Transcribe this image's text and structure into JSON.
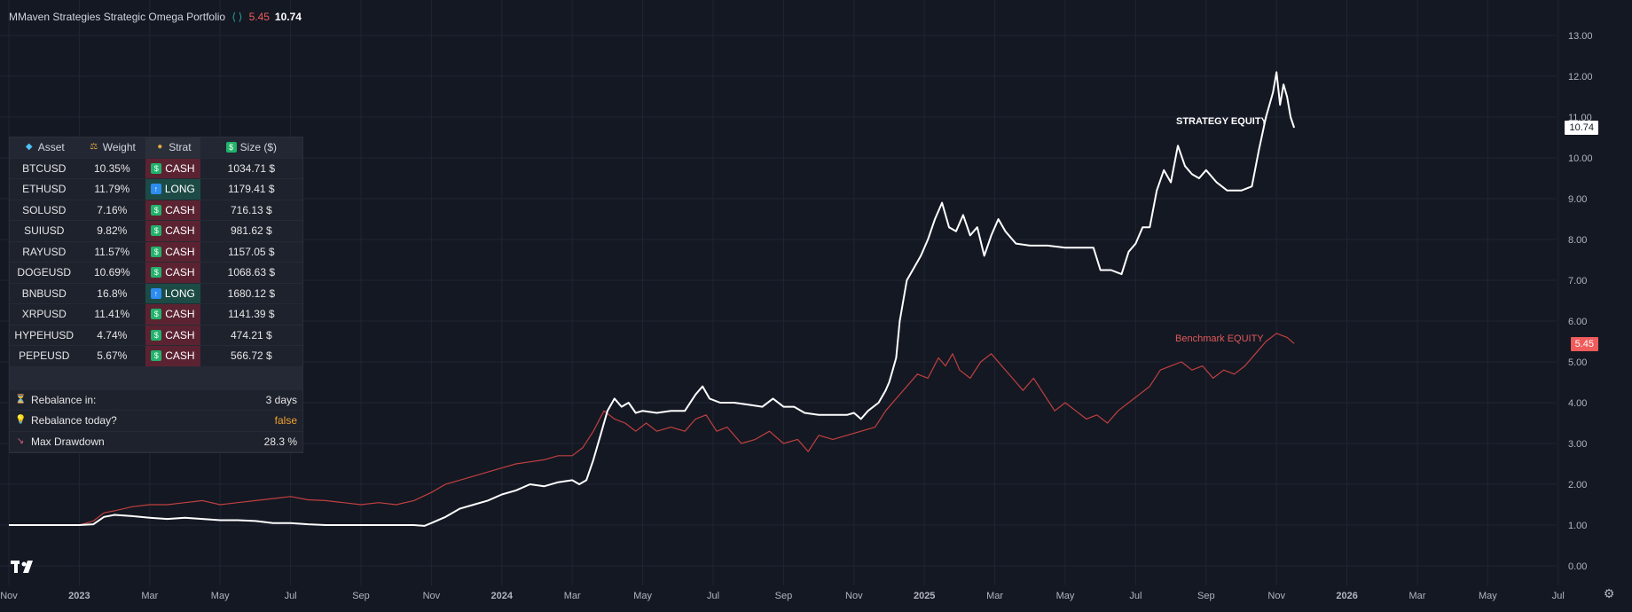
{
  "legend": {
    "title": "MMaven Strategies Strategic Omega Portfolio",
    "brackets": "⟨⟩",
    "benchmark_value": "5.45",
    "strategy_value": "10.74"
  },
  "colors": {
    "background": "#141823",
    "grid": "#202533",
    "strategy_line": "#ffffff",
    "benchmark_line": "#c0403f",
    "cash_cell": "#5b2331",
    "long_cell": "#1c4b46",
    "false_text": "#f0a030"
  },
  "labels": {
    "strategy": "STRATEGY EQUITY",
    "benchmark": "Benchmark EQUITY"
  },
  "price_tags": {
    "strategy": "10.74",
    "benchmark": "5.45"
  },
  "table": {
    "headers": {
      "asset": "Asset",
      "weight": "Weight",
      "strat": "Strat",
      "size": "Size ($)"
    },
    "header_icons": {
      "asset": "gem-icon",
      "weight": "scale-icon",
      "strat": "coin-icon",
      "size": "money-icon"
    },
    "rows": [
      {
        "asset": "BTCUSD",
        "weight": "10.35%",
        "strat": "CASH",
        "size": "1034.71 $"
      },
      {
        "asset": "ETHUSD",
        "weight": "11.79%",
        "strat": "LONG",
        "size": "1179.41 $"
      },
      {
        "asset": "SOLUSD",
        "weight": "7.16%",
        "strat": "CASH",
        "size": "716.13 $"
      },
      {
        "asset": "SUIUSD",
        "weight": "9.82%",
        "strat": "CASH",
        "size": "981.62 $"
      },
      {
        "asset": "RAYUSD",
        "weight": "11.57%",
        "strat": "CASH",
        "size": "1157.05 $"
      },
      {
        "asset": "DOGEUSD",
        "weight": "10.69%",
        "strat": "CASH",
        "size": "1068.63 $"
      },
      {
        "asset": "BNBUSD",
        "weight": "16.8%",
        "strat": "LONG",
        "size": "1680.12 $"
      },
      {
        "asset": "XRPUSD",
        "weight": "11.41%",
        "strat": "CASH",
        "size": "1141.39 $"
      },
      {
        "asset": "HYPEHUSD",
        "weight": "4.74%",
        "strat": "CASH",
        "size": "474.21 $"
      },
      {
        "asset": "PEPEUSD",
        "weight": "5.67%",
        "strat": "CASH",
        "size": "566.72 $"
      }
    ],
    "info": [
      {
        "icon": "hourglass-icon",
        "label": "Rebalance in:",
        "value": "3 days"
      },
      {
        "icon": "lightbulb-icon",
        "label": "Rebalance today?",
        "value": "false"
      },
      {
        "icon": "chart-down-icon",
        "label": "Max Drawdown",
        "value": "28.3 %"
      }
    ]
  },
  "chart_data": {
    "type": "line",
    "y_ticks": [
      "0.00",
      "1.00",
      "2.00",
      "3.00",
      "4.00",
      "5.00",
      "6.00",
      "7.00",
      "8.00",
      "9.00",
      "10.00",
      "11.00",
      "12.00",
      "13.00"
    ],
    "ylim": [
      0,
      13
    ],
    "x_ticks": [
      "Nov",
      "2023",
      "Mar",
      "May",
      "Jul",
      "Sep",
      "Nov",
      "2024",
      "Mar",
      "May",
      "Jul",
      "Sep",
      "Nov",
      "2025",
      "Mar",
      "May",
      "Jul",
      "Sep",
      "Nov",
      "2026",
      "Mar",
      "May",
      "Jul"
    ],
    "x_unit": "months since Nov 2022",
    "series": [
      {
        "name": "STRATEGY EQUITY",
        "points": [
          [
            0,
            1.0
          ],
          [
            2.0,
            1.0
          ],
          [
            2.4,
            1.02
          ],
          [
            2.7,
            1.2
          ],
          [
            3.0,
            1.25
          ],
          [
            3.5,
            1.22
          ],
          [
            4.0,
            1.18
          ],
          [
            4.5,
            1.15
          ],
          [
            5.0,
            1.18
          ],
          [
            5.5,
            1.15
          ],
          [
            6.0,
            1.12
          ],
          [
            6.5,
            1.12
          ],
          [
            7.0,
            1.1
          ],
          [
            7.5,
            1.05
          ],
          [
            8.0,
            1.05
          ],
          [
            8.5,
            1.02
          ],
          [
            9.0,
            1.0
          ],
          [
            9.5,
            1.0
          ],
          [
            10.0,
            1.0
          ],
          [
            10.5,
            1.0
          ],
          [
            11.0,
            1.0
          ],
          [
            11.5,
            1.0
          ],
          [
            11.8,
            0.98
          ],
          [
            12.0,
            1.05
          ],
          [
            12.4,
            1.2
          ],
          [
            12.8,
            1.4
          ],
          [
            13.2,
            1.5
          ],
          [
            13.6,
            1.6
          ],
          [
            14.0,
            1.75
          ],
          [
            14.4,
            1.85
          ],
          [
            14.8,
            2.0
          ],
          [
            15.2,
            1.95
          ],
          [
            15.6,
            2.05
          ],
          [
            16.0,
            2.1
          ],
          [
            16.2,
            2.0
          ],
          [
            16.4,
            2.1
          ],
          [
            16.6,
            2.6
          ],
          [
            16.8,
            3.2
          ],
          [
            17.0,
            3.8
          ],
          [
            17.2,
            4.1
          ],
          [
            17.4,
            3.9
          ],
          [
            17.6,
            4.0
          ],
          [
            17.8,
            3.75
          ],
          [
            18.0,
            3.8
          ],
          [
            18.4,
            3.75
          ],
          [
            18.8,
            3.8
          ],
          [
            19.2,
            3.8
          ],
          [
            19.5,
            4.2
          ],
          [
            19.7,
            4.4
          ],
          [
            19.9,
            4.1
          ],
          [
            20.2,
            4.0
          ],
          [
            20.6,
            4.0
          ],
          [
            21.0,
            3.95
          ],
          [
            21.4,
            3.9
          ],
          [
            21.7,
            4.1
          ],
          [
            22.0,
            3.9
          ],
          [
            22.3,
            3.9
          ],
          [
            22.6,
            3.75
          ],
          [
            23.0,
            3.7
          ],
          [
            23.4,
            3.7
          ],
          [
            23.8,
            3.7
          ],
          [
            24.0,
            3.75
          ],
          [
            24.2,
            3.6
          ],
          [
            24.4,
            3.8
          ],
          [
            24.7,
            4.0
          ],
          [
            24.9,
            4.3
          ],
          [
            25.0,
            4.5
          ],
          [
            25.1,
            4.8
          ],
          [
            25.2,
            5.1
          ],
          [
            25.3,
            6.0
          ],
          [
            25.5,
            7.0
          ],
          [
            25.7,
            7.3
          ],
          [
            25.9,
            7.6
          ],
          [
            26.1,
            8.0
          ],
          [
            26.3,
            8.5
          ],
          [
            26.5,
            8.9
          ],
          [
            26.7,
            8.3
          ],
          [
            26.9,
            8.2
          ],
          [
            27.1,
            8.6
          ],
          [
            27.3,
            8.1
          ],
          [
            27.5,
            8.3
          ],
          [
            27.7,
            7.6
          ],
          [
            27.9,
            8.1
          ],
          [
            28.1,
            8.5
          ],
          [
            28.3,
            8.2
          ],
          [
            28.6,
            7.9
          ],
          [
            29.0,
            7.85
          ],
          [
            29.5,
            7.85
          ],
          [
            30.0,
            7.8
          ],
          [
            30.5,
            7.8
          ],
          [
            30.8,
            7.8
          ],
          [
            31.0,
            7.25
          ],
          [
            31.3,
            7.25
          ],
          [
            31.6,
            7.15
          ],
          [
            31.8,
            7.7
          ],
          [
            32.0,
            7.9
          ],
          [
            32.2,
            8.3
          ],
          [
            32.4,
            8.3
          ],
          [
            32.6,
            9.2
          ],
          [
            32.8,
            9.7
          ],
          [
            33.0,
            9.4
          ],
          [
            33.2,
            10.3
          ],
          [
            33.4,
            9.8
          ],
          [
            33.6,
            9.6
          ],
          [
            33.8,
            9.5
          ],
          [
            34.0,
            9.7
          ],
          [
            34.3,
            9.4
          ],
          [
            34.6,
            9.2
          ],
          [
            35.0,
            9.2
          ],
          [
            35.3,
            9.3
          ],
          [
            35.5,
            10.2
          ],
          [
            35.7,
            11.0
          ],
          [
            35.9,
            11.6
          ],
          [
            36.0,
            12.1
          ],
          [
            36.1,
            11.3
          ],
          [
            36.2,
            11.8
          ],
          [
            36.3,
            11.5
          ],
          [
            36.4,
            11.0
          ],
          [
            36.5,
            10.74
          ]
        ]
      },
      {
        "name": "Benchmark EQUITY",
        "points": [
          [
            0,
            1.0
          ],
          [
            2.0,
            1.0
          ],
          [
            2.4,
            1.1
          ],
          [
            2.7,
            1.3
          ],
          [
            3.0,
            1.35
          ],
          [
            3.5,
            1.45
          ],
          [
            4.0,
            1.5
          ],
          [
            4.5,
            1.5
          ],
          [
            5.0,
            1.55
          ],
          [
            5.5,
            1.6
          ],
          [
            6.0,
            1.5
          ],
          [
            6.5,
            1.55
          ],
          [
            7.0,
            1.6
          ],
          [
            7.5,
            1.65
          ],
          [
            8.0,
            1.7
          ],
          [
            8.5,
            1.62
          ],
          [
            9.0,
            1.6
          ],
          [
            9.5,
            1.55
          ],
          [
            10.0,
            1.5
          ],
          [
            10.5,
            1.55
          ],
          [
            11.0,
            1.5
          ],
          [
            11.5,
            1.6
          ],
          [
            12.0,
            1.8
          ],
          [
            12.4,
            2.0
          ],
          [
            12.8,
            2.1
          ],
          [
            13.2,
            2.2
          ],
          [
            13.6,
            2.3
          ],
          [
            14.0,
            2.4
          ],
          [
            14.4,
            2.5
          ],
          [
            14.8,
            2.55
          ],
          [
            15.2,
            2.6
          ],
          [
            15.6,
            2.7
          ],
          [
            16.0,
            2.7
          ],
          [
            16.3,
            2.9
          ],
          [
            16.6,
            3.3
          ],
          [
            16.9,
            3.8
          ],
          [
            17.2,
            3.6
          ],
          [
            17.5,
            3.5
          ],
          [
            17.8,
            3.3
          ],
          [
            18.1,
            3.5
          ],
          [
            18.4,
            3.3
          ],
          [
            18.8,
            3.4
          ],
          [
            19.2,
            3.3
          ],
          [
            19.5,
            3.6
          ],
          [
            19.8,
            3.7
          ],
          [
            20.1,
            3.3
          ],
          [
            20.4,
            3.4
          ],
          [
            20.8,
            3.0
          ],
          [
            21.2,
            3.1
          ],
          [
            21.6,
            3.3
          ],
          [
            22.0,
            3.0
          ],
          [
            22.4,
            3.1
          ],
          [
            22.7,
            2.8
          ],
          [
            23.0,
            3.2
          ],
          [
            23.4,
            3.1
          ],
          [
            23.8,
            3.2
          ],
          [
            24.2,
            3.3
          ],
          [
            24.6,
            3.4
          ],
          [
            24.9,
            3.8
          ],
          [
            25.2,
            4.1
          ],
          [
            25.5,
            4.4
          ],
          [
            25.8,
            4.7
          ],
          [
            26.1,
            4.6
          ],
          [
            26.4,
            5.1
          ],
          [
            26.6,
            4.9
          ],
          [
            26.8,
            5.2
          ],
          [
            27.0,
            4.8
          ],
          [
            27.3,
            4.6
          ],
          [
            27.6,
            5.0
          ],
          [
            27.9,
            5.2
          ],
          [
            28.2,
            4.9
          ],
          [
            28.5,
            4.6
          ],
          [
            28.8,
            4.3
          ],
          [
            29.1,
            4.6
          ],
          [
            29.4,
            4.2
          ],
          [
            29.7,
            3.8
          ],
          [
            30.0,
            4.0
          ],
          [
            30.3,
            3.8
          ],
          [
            30.6,
            3.6
          ],
          [
            30.9,
            3.7
          ],
          [
            31.2,
            3.5
          ],
          [
            31.5,
            3.8
          ],
          [
            31.8,
            4.0
          ],
          [
            32.1,
            4.2
          ],
          [
            32.4,
            4.4
          ],
          [
            32.7,
            4.8
          ],
          [
            33.0,
            4.9
          ],
          [
            33.3,
            5.0
          ],
          [
            33.6,
            4.8
          ],
          [
            33.9,
            4.9
          ],
          [
            34.2,
            4.6
          ],
          [
            34.5,
            4.8
          ],
          [
            34.8,
            4.7
          ],
          [
            35.1,
            4.9
          ],
          [
            35.4,
            5.2
          ],
          [
            35.7,
            5.5
          ],
          [
            36.0,
            5.7
          ],
          [
            36.3,
            5.6
          ],
          [
            36.5,
            5.45
          ]
        ]
      }
    ],
    "grid": true,
    "legend": "top-left"
  }
}
